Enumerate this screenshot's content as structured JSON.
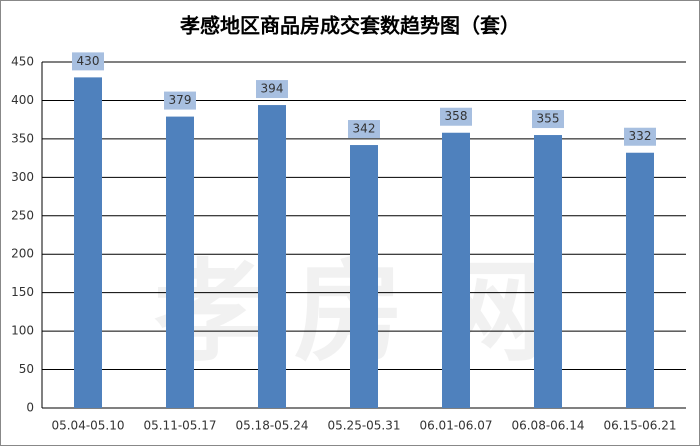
{
  "chart_data": {
    "type": "bar",
    "title": "孝感地区商品房成交套数趋势图（套）",
    "categories": [
      "05.04-05.10",
      "05.11-05.17",
      "05.18-05.24",
      "05.25-05.31",
      "06.01-06.07",
      "06.08-06.14",
      "06.15-06.21"
    ],
    "values": [
      430,
      379,
      394,
      342,
      358,
      355,
      332
    ],
    "color": "#4f81bd",
    "label_box_color": "#a7bfe0",
    "ylim": [
      0,
      450
    ],
    "yticks": [
      0,
      50,
      100,
      150,
      200,
      250,
      300,
      350,
      400,
      450
    ],
    "grid": true,
    "watermark": "孝房网"
  }
}
